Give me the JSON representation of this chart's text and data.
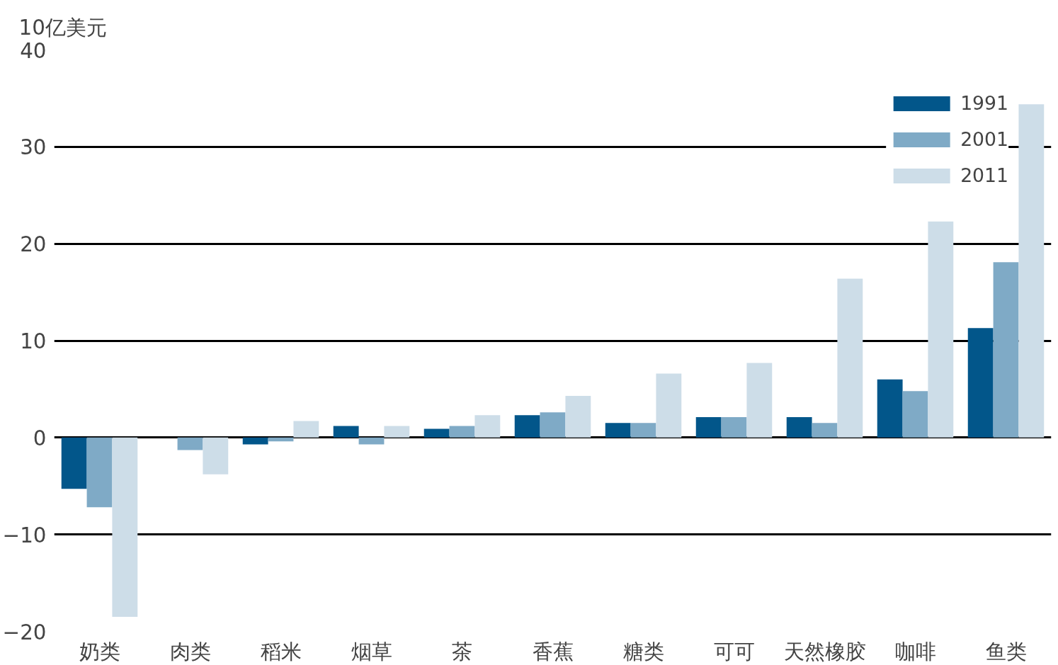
{
  "chart_data": {
    "type": "bar",
    "ylabel": "10亿美元",
    "categories": [
      "奶类",
      "肉类",
      "稻米",
      "烟草",
      "茶",
      "香蕉",
      "糖类",
      "可可",
      "天然橡胶",
      "咖啡",
      "鱼类"
    ],
    "series": [
      {
        "name": "1991",
        "color": "#02568a",
        "values": [
          -5.3,
          0,
          -0.7,
          1.2,
          0.9,
          2.3,
          1.5,
          2.1,
          2.1,
          6.0,
          11.3
        ]
      },
      {
        "name": "2001",
        "color": "#7faac6",
        "values": [
          -7.2,
          -1.3,
          -0.4,
          -0.7,
          1.2,
          2.6,
          1.5,
          2.1,
          1.5,
          4.8,
          18.1
        ]
      },
      {
        "name": "2011",
        "color": "#cddde8",
        "values": [
          -18.5,
          -3.8,
          1.7,
          1.2,
          2.3,
          4.3,
          6.6,
          7.7,
          16.4,
          22.3,
          34.4
        ]
      }
    ],
    "ylim": [
      -20,
      40
    ],
    "yticks": [
      -20,
      -10,
      0,
      10,
      20,
      30,
      40
    ],
    "grid": "y",
    "legend": "top right"
  }
}
